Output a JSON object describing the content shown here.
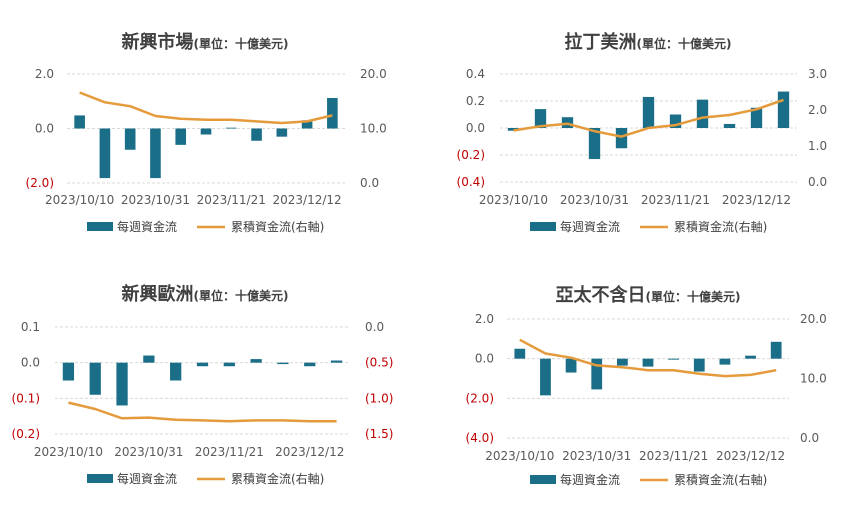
{
  "colors": {
    "bar": "#1a6e87",
    "line": "#e59a3b",
    "grid": "#d9d9d9",
    "negative": "#c00000",
    "text": "#595959"
  },
  "legend": {
    "bar_label": "每週資金流",
    "line_label": "累積資金流(右軸)"
  },
  "chart_data": [
    {
      "type": "bar+line",
      "title": "新興市場",
      "unit": "(單位：十億美元)",
      "x_tick_labels": [
        "2023/10/10",
        "2023/10/31",
        "2023/11/21",
        "2023/12/12"
      ],
      "categories": [
        "2023/10/10",
        "2023/10/17",
        "2023/10/24",
        "2023/10/31",
        "2023/11/07",
        "2023/11/14",
        "2023/11/21",
        "2023/11/28",
        "2023/12/05",
        "2023/12/12",
        "2023/12/19"
      ],
      "y_left": {
        "range": [
          -2,
          2
        ],
        "ticks": [
          "2.0",
          "0.0",
          "(2.0)"
        ],
        "tick_values": [
          2,
          0,
          -2
        ]
      },
      "y_right": {
        "range": [
          0,
          20
        ],
        "ticks": [
          "20.0",
          "10.0",
          "0.0"
        ],
        "tick_values": [
          20,
          10,
          0
        ]
      },
      "weekly": [
        0.48,
        -1.82,
        -0.78,
        -1.82,
        -0.6,
        -0.22,
        0.03,
        -0.45,
        -0.3,
        0.3,
        1.12
      ],
      "cumulative": [
        16.6,
        14.8,
        14.1,
        12.3,
        11.8,
        11.6,
        11.6,
        11.3,
        11.0,
        11.3,
        12.4
      ]
    },
    {
      "type": "bar+line",
      "title": "拉丁美洲",
      "unit": "(單位：十億美元)",
      "x_tick_labels": [
        "2023/10/10",
        "2023/10/31",
        "2023/11/21",
        "2023/12/12"
      ],
      "categories": [
        "2023/10/10",
        "2023/10/17",
        "2023/10/24",
        "2023/10/31",
        "2023/11/07",
        "2023/11/14",
        "2023/11/21",
        "2023/11/28",
        "2023/12/05",
        "2023/12/12",
        "2023/12/19"
      ],
      "y_left": {
        "range": [
          -0.4,
          0.4
        ],
        "ticks": [
          "0.4",
          "0.2",
          "0.0",
          "(0.2)",
          "(0.4)"
        ],
        "tick_values": [
          0.4,
          0.2,
          0,
          -0.2,
          -0.4
        ]
      },
      "y_right": {
        "range": [
          0,
          3
        ],
        "ticks": [
          "3.0",
          "2.0",
          "1.0",
          "0.0"
        ],
        "tick_values": [
          3,
          2,
          1,
          0
        ]
      },
      "weekly": [
        -0.02,
        0.14,
        0.08,
        -0.23,
        -0.15,
        0.23,
        0.1,
        0.21,
        0.03,
        0.15,
        0.27
      ],
      "cumulative": [
        1.43,
        1.55,
        1.62,
        1.41,
        1.26,
        1.5,
        1.58,
        1.79,
        1.86,
        2.02,
        2.28
      ]
    },
    {
      "type": "bar+line",
      "title": "新興歐洲",
      "unit": "(單位：十億美元)",
      "x_tick_labels": [
        "2023/10/10",
        "2023/10/31",
        "2023/11/21",
        "2023/12/12"
      ],
      "categories": [
        "2023/10/10",
        "2023/10/17",
        "2023/10/24",
        "2023/10/31",
        "2023/11/07",
        "2023/11/14",
        "2023/11/21",
        "2023/11/28",
        "2023/12/05",
        "2023/12/12",
        "2023/12/19"
      ],
      "y_left": {
        "range": [
          -0.2,
          0.1
        ],
        "ticks": [
          "0.1",
          "0.0",
          "(0.1)",
          "(0.2)"
        ],
        "tick_values": [
          0.1,
          0,
          -0.1,
          -0.2
        ]
      },
      "y_right": {
        "range": [
          -1.5,
          0
        ],
        "ticks": [
          "0.0",
          "(0.5)",
          "(1.0)",
          "(1.5)"
        ],
        "tick_values": [
          0,
          -0.5,
          -1,
          -1.5
        ]
      },
      "weekly": [
        -0.05,
        -0.09,
        -0.12,
        0.02,
        -0.05,
        -0.01,
        -0.01,
        0.01,
        -0.004,
        -0.01,
        0.006
      ],
      "cumulative": [
        -1.06,
        -1.15,
        -1.28,
        -1.27,
        -1.3,
        -1.31,
        -1.32,
        -1.31,
        -1.31,
        -1.32,
        -1.32
      ]
    },
    {
      "type": "bar+line",
      "title": "亞太不含日",
      "unit": "(單位：十億美元)",
      "x_tick_labels": [
        "2023/10/10",
        "2023/10/31",
        "2023/11/21",
        "2023/12/12"
      ],
      "categories": [
        "2023/10/10",
        "2023/10/17",
        "2023/10/24",
        "2023/10/31",
        "2023/11/07",
        "2023/11/14",
        "2023/11/21",
        "2023/11/28",
        "2023/12/05",
        "2023/12/12",
        "2023/12/19"
      ],
      "y_left": {
        "range": [
          -4,
          2
        ],
        "ticks": [
          "2.0",
          "0.0",
          "(2.0)",
          "(4.0)"
        ],
        "tick_values": [
          2,
          0,
          -2,
          -4
        ]
      },
      "y_right": {
        "range": [
          0,
          20
        ],
        "ticks": [
          "20.0",
          "10.0",
          "0.0"
        ],
        "tick_values": [
          20,
          10,
          0
        ]
      },
      "weekly": [
        0.5,
        -1.85,
        -0.7,
        -1.55,
        -0.35,
        -0.4,
        -0.05,
        -0.65,
        -0.3,
        0.15,
        0.85
      ],
      "cumulative": [
        16.5,
        14.2,
        13.5,
        12.2,
        11.9,
        11.4,
        11.4,
        10.8,
        10.4,
        10.6,
        11.4
      ]
    }
  ]
}
